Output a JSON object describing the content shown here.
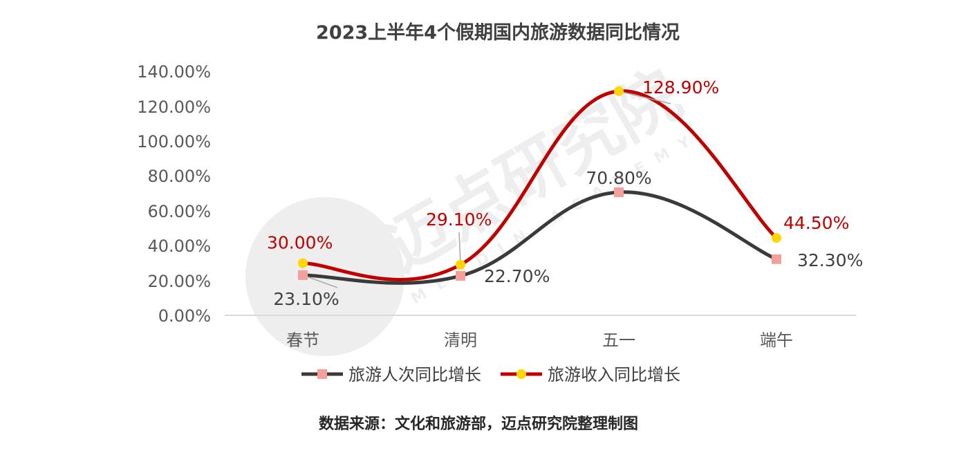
{
  "chart_data": {
    "type": "line",
    "title": "2023上半年4个假期国内旅游数据同比情况",
    "categories": [
      "春节",
      "清明",
      "五一",
      "端午"
    ],
    "series": [
      {
        "name": "旅游人次同比增长",
        "values": [
          23.1,
          22.7,
          70.8,
          32.3
        ],
        "labels": [
          "23.10%",
          "22.70%",
          "70.80%",
          "32.30%"
        ],
        "color": "#3a3a3a",
        "marker": "square",
        "marker_color": "#f4a09a",
        "label_color": "#404040"
      },
      {
        "name": "旅游收入同比增长",
        "values": [
          30.0,
          29.1,
          128.9,
          44.5
        ],
        "labels": [
          "30.00%",
          "29.10%",
          "128.90%",
          "44.50%"
        ],
        "color": "#c00000",
        "marker": "circle",
        "marker_color": "#ffd700",
        "label_color": "#c00000"
      }
    ],
    "yticks": [
      "0.00%",
      "20.00%",
      "40.00%",
      "60.00%",
      "80.00%",
      "100.00%",
      "120.00%",
      "140.00%"
    ],
    "ylim": [
      0,
      140
    ],
    "grid": false,
    "legend_position": "bottom"
  },
  "source_note": "数据来源：文化和旅游部，迈点研究院整理制图",
  "watermark": {
    "cn": "迈点研究院",
    "en": "MEADIN ACADEMY"
  }
}
